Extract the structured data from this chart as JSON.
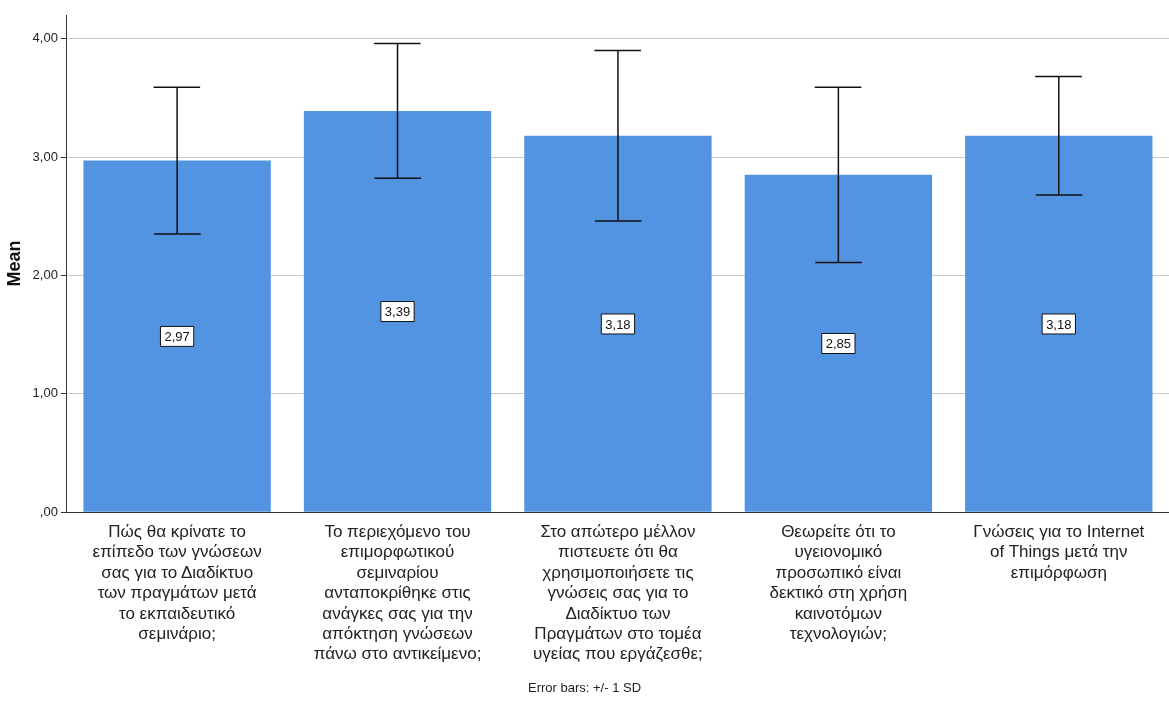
{
  "chart_data": {
    "type": "bar",
    "ylabel": "Mean",
    "categories": [
      "Πώς θα κρίνατε το επίπεδο των γνώσεων σας για το Διαδίκτυο των πραγμάτων μετά το εκπαιδευτικό σεμινάριο;",
      "Το περιεχόμενο του επιμορφωτικού σεμιναρίου ανταποκρίθηκε στις ανάγκες σας για την απόκτηση γνώσεων πάνω στο αντικείμενο;",
      "Στο απώτερο μέλλον πιστευετε ότι θα χρησιμοποιήσετε τις γνώσεις σας για το Διαδίκτυο των Πραγμάτων στο τομέα υγείας που εργάζεσθε;",
      "Θεωρείτε ότι το υγειονομικό προσωπικό είναι δεκτικό στη χρήση καινοτόμων τεχνολογιών;",
      "Γνώσεις για το Internet of Things μετά την επιμόρφωση"
    ],
    "values": [
      2.97,
      3.39,
      3.18,
      2.85,
      3.18
    ],
    "value_labels": [
      "2,97",
      "3,39",
      "3,18",
      "2,85",
      "3,18"
    ],
    "errors": [
      0.62,
      0.57,
      0.72,
      0.74,
      0.5
    ],
    "color": "#5294e2",
    "ylim": [
      0,
      4.2
    ],
    "yticks": [
      {
        "value": 0,
        "label": ",00"
      },
      {
        "value": 1,
        "label": "1,00"
      },
      {
        "value": 2,
        "label": "2,00"
      },
      {
        "value": 3,
        "label": "3,00"
      },
      {
        "value": 4,
        "label": "4,00"
      }
    ],
    "grid": "y",
    "annotations": [
      "Error bars: +/- 1 SD"
    ]
  }
}
